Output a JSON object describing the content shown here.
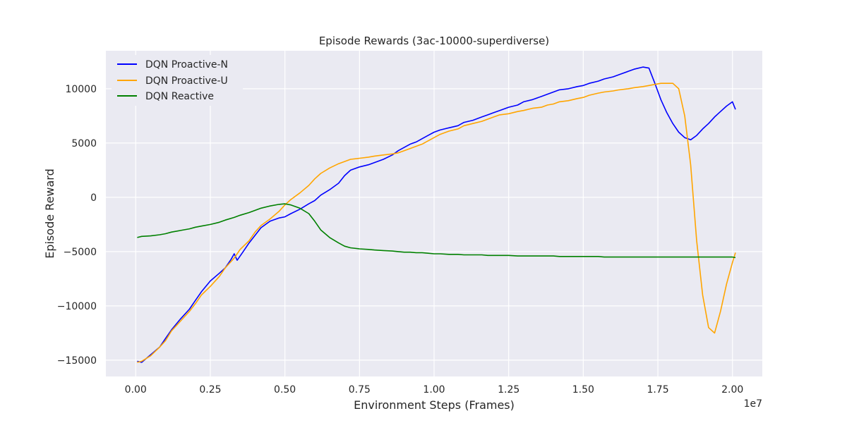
{
  "chart_data": {
    "type": "line",
    "title": "Episode Rewards (3ac-10000-superdiverse)",
    "xlabel": "Environment Steps (Frames)",
    "ylabel": "Episode Reward",
    "x_offset_label": "1e7",
    "xlim": [
      -0.1,
      2.1
    ],
    "ylim": [
      -16500,
      13500
    ],
    "xticks": [
      0.0,
      0.25,
      0.5,
      0.75,
      1.0,
      1.25,
      1.5,
      1.75,
      2.0
    ],
    "xtick_labels": [
      "0.00",
      "0.25",
      "0.50",
      "0.75",
      "1.00",
      "1.25",
      "1.50",
      "1.75",
      "2.00"
    ],
    "yticks": [
      -15000,
      -10000,
      -5000,
      0,
      5000,
      10000
    ],
    "ytick_labels": [
      "−15000",
      "−10000",
      "−5000",
      "0",
      "5000",
      "10000"
    ],
    "grid": true,
    "legend_position": "top-left",
    "series": [
      {
        "name": "DQN Proactive-N",
        "color": "#0000ff",
        "points": [
          [
            0.005,
            -15100
          ],
          [
            0.02,
            -15200
          ],
          [
            0.05,
            -14500
          ],
          [
            0.08,
            -13800
          ],
          [
            0.1,
            -13000
          ],
          [
            0.12,
            -12200
          ],
          [
            0.15,
            -11200
          ],
          [
            0.18,
            -10300
          ],
          [
            0.2,
            -9500
          ],
          [
            0.22,
            -8700
          ],
          [
            0.25,
            -7700
          ],
          [
            0.28,
            -7000
          ],
          [
            0.3,
            -6500
          ],
          [
            0.32,
            -5700
          ],
          [
            0.33,
            -5200
          ],
          [
            0.34,
            -5800
          ],
          [
            0.36,
            -5000
          ],
          [
            0.38,
            -4200
          ],
          [
            0.4,
            -3500
          ],
          [
            0.42,
            -2800
          ],
          [
            0.45,
            -2200
          ],
          [
            0.48,
            -1900
          ],
          [
            0.5,
            -1800
          ],
          [
            0.52,
            -1500
          ],
          [
            0.55,
            -1100
          ],
          [
            0.58,
            -600
          ],
          [
            0.6,
            -300
          ],
          [
            0.62,
            200
          ],
          [
            0.65,
            700
          ],
          [
            0.68,
            1300
          ],
          [
            0.7,
            2000
          ],
          [
            0.72,
            2500
          ],
          [
            0.75,
            2800
          ],
          [
            0.78,
            3000
          ],
          [
            0.8,
            3200
          ],
          [
            0.83,
            3500
          ],
          [
            0.86,
            3900
          ],
          [
            0.88,
            4300
          ],
          [
            0.9,
            4600
          ],
          [
            0.92,
            4900
          ],
          [
            0.94,
            5100
          ],
          [
            0.96,
            5400
          ],
          [
            0.98,
            5700
          ],
          [
            1.0,
            6000
          ],
          [
            1.02,
            6200
          ],
          [
            1.05,
            6400
          ],
          [
            1.08,
            6600
          ],
          [
            1.1,
            6900
          ],
          [
            1.13,
            7100
          ],
          [
            1.16,
            7400
          ],
          [
            1.18,
            7600
          ],
          [
            1.2,
            7800
          ],
          [
            1.22,
            8000
          ],
          [
            1.25,
            8300
          ],
          [
            1.28,
            8500
          ],
          [
            1.3,
            8800
          ],
          [
            1.33,
            9000
          ],
          [
            1.36,
            9300
          ],
          [
            1.38,
            9500
          ],
          [
            1.4,
            9700
          ],
          [
            1.42,
            9900
          ],
          [
            1.45,
            10000
          ],
          [
            1.48,
            10200
          ],
          [
            1.5,
            10300
          ],
          [
            1.52,
            10500
          ],
          [
            1.55,
            10700
          ],
          [
            1.57,
            10900
          ],
          [
            1.6,
            11100
          ],
          [
            1.62,
            11300
          ],
          [
            1.65,
            11600
          ],
          [
            1.67,
            11800
          ],
          [
            1.7,
            12000
          ],
          [
            1.72,
            11900
          ],
          [
            1.74,
            10500
          ],
          [
            1.76,
            9000
          ],
          [
            1.78,
            7800
          ],
          [
            1.8,
            6800
          ],
          [
            1.82,
            6000
          ],
          [
            1.84,
            5500
          ],
          [
            1.86,
            5300
          ],
          [
            1.88,
            5700
          ],
          [
            1.9,
            6300
          ],
          [
            1.92,
            6800
          ],
          [
            1.94,
            7400
          ],
          [
            1.96,
            7900
          ],
          [
            1.98,
            8400
          ],
          [
            2.0,
            8800
          ],
          [
            2.01,
            8100
          ]
        ]
      },
      {
        "name": "DQN Proactive-U",
        "color": "#ffa500",
        "points": [
          [
            0.005,
            -15200
          ],
          [
            0.02,
            -15100
          ],
          [
            0.05,
            -14600
          ],
          [
            0.08,
            -13800
          ],
          [
            0.1,
            -13200
          ],
          [
            0.12,
            -12300
          ],
          [
            0.15,
            -11400
          ],
          [
            0.18,
            -10500
          ],
          [
            0.2,
            -9800
          ],
          [
            0.22,
            -9000
          ],
          [
            0.25,
            -8200
          ],
          [
            0.28,
            -7300
          ],
          [
            0.3,
            -6500
          ],
          [
            0.33,
            -5600
          ],
          [
            0.35,
            -4800
          ],
          [
            0.38,
            -4000
          ],
          [
            0.4,
            -3200
          ],
          [
            0.42,
            -2600
          ],
          [
            0.45,
            -2000
          ],
          [
            0.48,
            -1300
          ],
          [
            0.5,
            -700
          ],
          [
            0.52,
            -200
          ],
          [
            0.55,
            400
          ],
          [
            0.58,
            1100
          ],
          [
            0.6,
            1700
          ],
          [
            0.62,
            2200
          ],
          [
            0.65,
            2700
          ],
          [
            0.68,
            3100
          ],
          [
            0.7,
            3300
          ],
          [
            0.72,
            3500
          ],
          [
            0.75,
            3600
          ],
          [
            0.78,
            3700
          ],
          [
            0.8,
            3800
          ],
          [
            0.83,
            3900
          ],
          [
            0.86,
            4000
          ],
          [
            0.88,
            4100
          ],
          [
            0.9,
            4300
          ],
          [
            0.92,
            4500
          ],
          [
            0.94,
            4700
          ],
          [
            0.96,
            4900
          ],
          [
            0.98,
            5200
          ],
          [
            1.0,
            5500
          ],
          [
            1.02,
            5800
          ],
          [
            1.05,
            6100
          ],
          [
            1.08,
            6300
          ],
          [
            1.1,
            6600
          ],
          [
            1.13,
            6800
          ],
          [
            1.16,
            7000
          ],
          [
            1.18,
            7200
          ],
          [
            1.2,
            7400
          ],
          [
            1.22,
            7600
          ],
          [
            1.25,
            7700
          ],
          [
            1.28,
            7900
          ],
          [
            1.3,
            8000
          ],
          [
            1.33,
            8200
          ],
          [
            1.36,
            8300
          ],
          [
            1.38,
            8500
          ],
          [
            1.4,
            8600
          ],
          [
            1.42,
            8800
          ],
          [
            1.45,
            8900
          ],
          [
            1.48,
            9100
          ],
          [
            1.5,
            9200
          ],
          [
            1.52,
            9400
          ],
          [
            1.55,
            9600
          ],
          [
            1.57,
            9700
          ],
          [
            1.6,
            9800
          ],
          [
            1.62,
            9900
          ],
          [
            1.65,
            10000
          ],
          [
            1.67,
            10100
          ],
          [
            1.7,
            10200
          ],
          [
            1.72,
            10300
          ],
          [
            1.74,
            10400
          ],
          [
            1.76,
            10500
          ],
          [
            1.78,
            10500
          ],
          [
            1.8,
            10500
          ],
          [
            1.82,
            10000
          ],
          [
            1.84,
            7500
          ],
          [
            1.86,
            3000
          ],
          [
            1.88,
            -4000
          ],
          [
            1.9,
            -9000
          ],
          [
            1.92,
            -12000
          ],
          [
            1.94,
            -12500
          ],
          [
            1.96,
            -10500
          ],
          [
            1.98,
            -8000
          ],
          [
            2.0,
            -6000
          ],
          [
            2.01,
            -5100
          ]
        ]
      },
      {
        "name": "DQN Reactive",
        "color": "#008000",
        "points": [
          [
            0.005,
            -3700
          ],
          [
            0.02,
            -3600
          ],
          [
            0.05,
            -3550
          ],
          [
            0.08,
            -3450
          ],
          [
            0.1,
            -3350
          ],
          [
            0.12,
            -3200
          ],
          [
            0.15,
            -3050
          ],
          [
            0.18,
            -2900
          ],
          [
            0.2,
            -2750
          ],
          [
            0.22,
            -2650
          ],
          [
            0.25,
            -2500
          ],
          [
            0.28,
            -2300
          ],
          [
            0.3,
            -2100
          ],
          [
            0.33,
            -1850
          ],
          [
            0.35,
            -1650
          ],
          [
            0.38,
            -1400
          ],
          [
            0.4,
            -1200
          ],
          [
            0.42,
            -1000
          ],
          [
            0.45,
            -800
          ],
          [
            0.48,
            -650
          ],
          [
            0.5,
            -600
          ],
          [
            0.52,
            -700
          ],
          [
            0.55,
            -1000
          ],
          [
            0.58,
            -1500
          ],
          [
            0.6,
            -2200
          ],
          [
            0.62,
            -3000
          ],
          [
            0.65,
            -3700
          ],
          [
            0.68,
            -4200
          ],
          [
            0.7,
            -4500
          ],
          [
            0.72,
            -4650
          ],
          [
            0.75,
            -4750
          ],
          [
            0.78,
            -4800
          ],
          [
            0.8,
            -4850
          ],
          [
            0.83,
            -4900
          ],
          [
            0.86,
            -4950
          ],
          [
            0.88,
            -5000
          ],
          [
            0.9,
            -5050
          ],
          [
            0.92,
            -5050
          ],
          [
            0.94,
            -5100
          ],
          [
            0.96,
            -5100
          ],
          [
            0.98,
            -5150
          ],
          [
            1.0,
            -5200
          ],
          [
            1.02,
            -5200
          ],
          [
            1.05,
            -5250
          ],
          [
            1.08,
            -5250
          ],
          [
            1.1,
            -5300
          ],
          [
            1.13,
            -5300
          ],
          [
            1.16,
            -5300
          ],
          [
            1.18,
            -5350
          ],
          [
            1.2,
            -5350
          ],
          [
            1.22,
            -5350
          ],
          [
            1.25,
            -5350
          ],
          [
            1.28,
            -5400
          ],
          [
            1.3,
            -5400
          ],
          [
            1.33,
            -5400
          ],
          [
            1.36,
            -5400
          ],
          [
            1.38,
            -5400
          ],
          [
            1.4,
            -5400
          ],
          [
            1.42,
            -5450
          ],
          [
            1.45,
            -5450
          ],
          [
            1.48,
            -5450
          ],
          [
            1.5,
            -5450
          ],
          [
            1.52,
            -5450
          ],
          [
            1.55,
            -5450
          ],
          [
            1.57,
            -5500
          ],
          [
            1.6,
            -5500
          ],
          [
            1.62,
            -5500
          ],
          [
            1.65,
            -5500
          ],
          [
            1.67,
            -5500
          ],
          [
            1.7,
            -5500
          ],
          [
            1.72,
            -5500
          ],
          [
            1.74,
            -5500
          ],
          [
            1.76,
            -5500
          ],
          [
            1.78,
            -5500
          ],
          [
            1.8,
            -5500
          ],
          [
            1.82,
            -5500
          ],
          [
            1.84,
            -5500
          ],
          [
            1.86,
            -5500
          ],
          [
            1.88,
            -5500
          ],
          [
            1.9,
            -5500
          ],
          [
            1.92,
            -5500
          ],
          [
            1.94,
            -5500
          ],
          [
            1.96,
            -5500
          ],
          [
            1.98,
            -5500
          ],
          [
            2.0,
            -5500
          ],
          [
            2.01,
            -5550
          ]
        ]
      }
    ]
  }
}
